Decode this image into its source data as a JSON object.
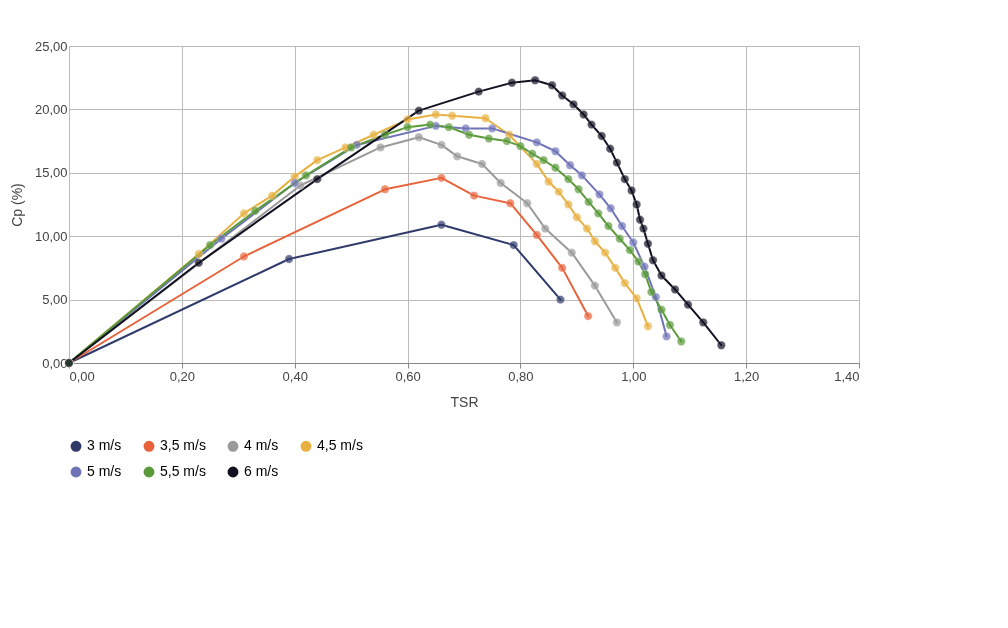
{
  "chart_data": {
    "type": "line",
    "xlabel": "TSR",
    "ylabel": "Cp (%)",
    "marker": "circle",
    "grid": true,
    "legend": "bottom",
    "xlim": [
      0,
      1.4
    ],
    "ylim": [
      0,
      25
    ],
    "xticks": [
      {
        "value": 0,
        "label": "0,00"
      },
      {
        "value": 0.2,
        "label": "0,20"
      },
      {
        "value": 0.4,
        "label": "0,40"
      },
      {
        "value": 0.6,
        "label": "0,60"
      },
      {
        "value": 0.8,
        "label": "0,80"
      },
      {
        "value": 1.0,
        "label": "1,00"
      },
      {
        "value": 1.2,
        "label": "1,20"
      },
      {
        "value": 1.4,
        "label": "1,40"
      }
    ],
    "yticks": [
      {
        "value": 0,
        "label": "0,00"
      },
      {
        "value": 5,
        "label": "5,00"
      },
      {
        "value": 10,
        "label": "10,00"
      },
      {
        "value": 15,
        "label": "15,00"
      },
      {
        "value": 20,
        "label": "20,00"
      },
      {
        "value": 25,
        "label": "25,00"
      }
    ],
    "series": [
      {
        "name": "3 m/s",
        "color": "#2f3a6b",
        "x": [
          0,
          0.39,
          0.66,
          0.788,
          0.871
        ],
        "values": [
          0,
          8.2,
          10.9,
          9.3,
          5.0
        ]
      },
      {
        "name": "3,5 m/s",
        "color": "#e8623a",
        "x": [
          0,
          0.31,
          0.56,
          0.66,
          0.718,
          0.782,
          0.829,
          0.874,
          0.92
        ],
        "values": [
          0,
          8.4,
          13.7,
          14.6,
          13.2,
          12.6,
          10.1,
          7.5,
          3.7
        ]
      },
      {
        "name": "4 m/s",
        "color": "#9a9a9a",
        "x": [
          0,
          0.41,
          0.552,
          0.62,
          0.66,
          0.688,
          0.732,
          0.765,
          0.812,
          0.844,
          0.891,
          0.932,
          0.971
        ],
        "values": [
          0,
          14.0,
          17.0,
          17.8,
          17.2,
          16.3,
          15.7,
          14.2,
          12.6,
          10.6,
          8.7,
          6.1,
          3.2
        ]
      },
      {
        "name": "4,5 m/s",
        "color": "#e8b040",
        "x": [
          0,
          0.23,
          0.31,
          0.36,
          0.4,
          0.44,
          0.49,
          0.54,
          0.6,
          0.65,
          0.679,
          0.738,
          0.78,
          0.829,
          0.85,
          0.868,
          0.885,
          0.9,
          0.918,
          0.932,
          0.95,
          0.968,
          0.985,
          1.006,
          1.026
        ],
        "values": [
          0,
          8.6,
          11.8,
          13.2,
          14.7,
          16.0,
          17.0,
          18.0,
          19.2,
          19.6,
          19.5,
          19.3,
          18.0,
          15.7,
          14.3,
          13.5,
          12.5,
          11.5,
          10.6,
          9.6,
          8.7,
          7.5,
          6.3,
          5.1,
          2.9
        ]
      },
      {
        "name": "5 m/s",
        "color": "#6f73b8",
        "x": [
          0,
          0.27,
          0.4,
          0.51,
          0.65,
          0.703,
          0.75,
          0.829,
          0.862,
          0.888,
          0.909,
          0.94,
          0.96,
          0.98,
          1.0,
          1.02,
          1.04,
          1.059
        ],
        "values": [
          0,
          9.8,
          14.2,
          17.2,
          18.7,
          18.5,
          18.5,
          17.4,
          16.7,
          15.6,
          14.8,
          13.3,
          12.2,
          10.8,
          9.5,
          7.6,
          5.2,
          2.1
        ]
      },
      {
        "name": "5,5 m/s",
        "color": "#5a9a3a",
        "x": [
          0,
          0.25,
          0.33,
          0.42,
          0.5,
          0.56,
          0.6,
          0.64,
          0.673,
          0.709,
          0.744,
          0.776,
          0.8,
          0.821,
          0.841,
          0.862,
          0.885,
          0.903,
          0.921,
          0.938,
          0.956,
          0.976,
          0.994,
          1.009,
          1.021,
          1.032,
          1.05,
          1.065,
          1.085
        ],
        "values": [
          0,
          9.3,
          12.0,
          14.8,
          17.0,
          18.0,
          18.6,
          18.8,
          18.6,
          18.0,
          17.7,
          17.5,
          17.1,
          16.5,
          16.0,
          15.4,
          14.5,
          13.7,
          12.7,
          11.8,
          10.8,
          9.8,
          8.9,
          8.0,
          7.0,
          5.6,
          4.2,
          3.0,
          1.7
        ]
      },
      {
        "name": "6 m/s",
        "color": "#111122",
        "x": [
          0,
          0.23,
          0.44,
          0.62,
          0.726,
          0.785,
          0.826,
          0.856,
          0.874,
          0.894,
          0.912,
          0.926,
          0.944,
          0.959,
          0.971,
          0.985,
          0.997,
          1.006,
          1.012,
          1.018,
          1.026,
          1.035,
          1.05,
          1.074,
          1.097,
          1.124,
          1.156
        ],
        "values": [
          0,
          7.9,
          14.5,
          19.9,
          21.4,
          22.1,
          22.3,
          21.9,
          21.1,
          20.4,
          19.6,
          18.8,
          17.9,
          16.9,
          15.8,
          14.5,
          13.6,
          12.5,
          11.3,
          10.6,
          9.4,
          8.1,
          6.9,
          5.8,
          4.6,
          3.2,
          1.4
        ]
      }
    ]
  }
}
